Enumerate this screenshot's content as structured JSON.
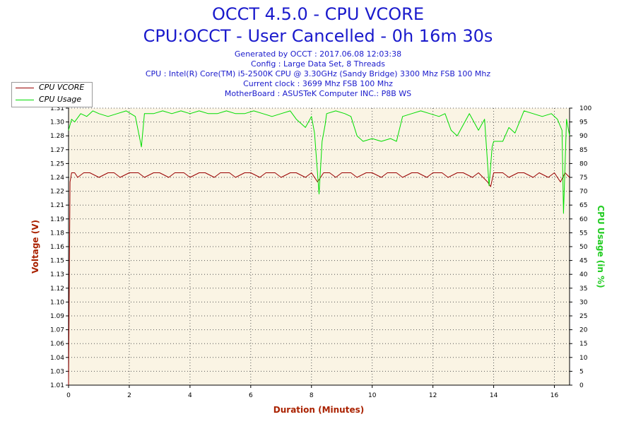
{
  "title": "OCCT 4.5.0 - CPU VCORE",
  "subtitle": "CPU:OCCT - User Cancelled - 0h 16m 30s",
  "info_lines": [
    "Generated by OCCT : 2017.06.08 12:03:38",
    "Config : Large Data Set, 8 Threads",
    "CPU : Intel(R) Core(TM) i5-2500K CPU @ 3.30GHz (Sandy Bridge) 3300 Mhz FSB 100 Mhz",
    "Current clock : 3699 Mhz FSB 100 Mhz",
    "MotherBoard : ASUSTeK Computer INC.: P8B WS"
  ],
  "colors": {
    "title": "#1a1acc",
    "vcore": "#990000",
    "usage": "#00dd00",
    "plot_bg": "#faf4e4",
    "grid": "#555555"
  },
  "chart_data": {
    "type": "line",
    "title": "OCCT 4.5.0 - CPU VCORE",
    "xlabel": "Duration (Minutes)",
    "ylabel_left": "Voltage (V)",
    "ylabel_right": "CPU Usage (in %)",
    "xlim": [
      0,
      16.5
    ],
    "ylim_left": [
      1.01,
      1.31
    ],
    "ylim_right": [
      0,
      100
    ],
    "x_ticks": [
      0,
      2,
      4,
      6,
      8,
      10,
      12,
      14,
      16
    ],
    "y_ticks_left": [
      "1.01",
      "1.03",
      "1.04",
      "1.06",
      "1.07",
      "1.09",
      "1.10",
      "1.12",
      "1.13",
      "1.15",
      "1.16",
      "1.18",
      "1.19",
      "1.21",
      "1.22",
      "1.24",
      "1.25",
      "1.27",
      "1.28",
      "1.30",
      "1.31"
    ],
    "y_ticks_right": [
      0,
      5,
      10,
      15,
      20,
      25,
      30,
      35,
      40,
      45,
      50,
      55,
      60,
      65,
      70,
      75,
      80,
      85,
      90,
      95,
      100
    ],
    "grid": true,
    "legend_position": "top-left",
    "series": [
      {
        "name": "CPU VCORE",
        "axis": "left",
        "color": "#990000",
        "x": [
          0,
          0.05,
          0.1,
          0.2,
          0.3,
          0.5,
          0.7,
          1,
          1.3,
          1.5,
          1.7,
          2,
          2.3,
          2.5,
          2.8,
          3,
          3.3,
          3.5,
          3.8,
          4,
          4.3,
          4.5,
          4.8,
          5,
          5.3,
          5.5,
          5.8,
          6,
          6.3,
          6.5,
          6.8,
          7,
          7.3,
          7.5,
          7.8,
          8,
          8.2,
          8.4,
          8.6,
          8.8,
          9,
          9.3,
          9.5,
          9.8,
          10,
          10.3,
          10.5,
          10.8,
          11,
          11.3,
          11.5,
          11.8,
          12,
          12.3,
          12.5,
          12.8,
          13,
          13.3,
          13.5,
          13.8,
          13.9,
          14,
          14.3,
          14.5,
          14.8,
          15,
          15.3,
          15.5,
          15.8,
          16,
          16.2,
          16.35,
          16.5
        ],
        "values": [
          1.01,
          1.23,
          1.24,
          1.24,
          1.235,
          1.24,
          1.24,
          1.235,
          1.24,
          1.24,
          1.235,
          1.24,
          1.24,
          1.235,
          1.24,
          1.24,
          1.235,
          1.24,
          1.24,
          1.235,
          1.24,
          1.24,
          1.235,
          1.24,
          1.24,
          1.235,
          1.24,
          1.24,
          1.235,
          1.24,
          1.24,
          1.235,
          1.24,
          1.24,
          1.235,
          1.24,
          1.23,
          1.24,
          1.24,
          1.235,
          1.24,
          1.24,
          1.235,
          1.24,
          1.24,
          1.235,
          1.24,
          1.24,
          1.235,
          1.24,
          1.24,
          1.235,
          1.24,
          1.24,
          1.235,
          1.24,
          1.24,
          1.235,
          1.24,
          1.23,
          1.225,
          1.24,
          1.24,
          1.235,
          1.24,
          1.24,
          1.235,
          1.24,
          1.235,
          1.24,
          1.23,
          1.24,
          1.235
        ]
      },
      {
        "name": "CPU Usage",
        "axis": "right",
        "color": "#00dd00",
        "x": [
          0,
          0.1,
          0.2,
          0.4,
          0.6,
          0.8,
          1,
          1.3,
          1.6,
          1.9,
          2.2,
          2.4,
          2.5,
          2.8,
          3.1,
          3.4,
          3.7,
          4,
          4.3,
          4.6,
          4.9,
          5.2,
          5.5,
          5.8,
          6.1,
          6.4,
          6.7,
          7,
          7.3,
          7.5,
          7.8,
          8,
          8.1,
          8.25,
          8.35,
          8.45,
          8.5,
          8.8,
          9.1,
          9.3,
          9.5,
          9.7,
          10,
          10.3,
          10.6,
          10.8,
          11,
          11.3,
          11.6,
          11.9,
          12.2,
          12.4,
          12.6,
          12.8,
          13,
          13.2,
          13.5,
          13.7,
          13.85,
          13.95,
          14,
          14.3,
          14.5,
          14.7,
          15,
          15.3,
          15.6,
          15.9,
          16.1,
          16.25,
          16.3,
          16.4,
          16.5
        ],
        "values": [
          92,
          96,
          95,
          98,
          97,
          99,
          98,
          97,
          98,
          99,
          97,
          86,
          98,
          98,
          99,
          98,
          99,
          98,
          99,
          98,
          98,
          99,
          98,
          98,
          99,
          98,
          97,
          98,
          99,
          96,
          93,
          97,
          91,
          69,
          88,
          94,
          98,
          99,
          98,
          97,
          90,
          88,
          89,
          88,
          89,
          88,
          97,
          98,
          99,
          98,
          97,
          98,
          92,
          90,
          94,
          98,
          92,
          96,
          72,
          86,
          88,
          88,
          93,
          91,
          99,
          98,
          97,
          98,
          96,
          92,
          62,
          96,
          90
        ]
      }
    ]
  }
}
